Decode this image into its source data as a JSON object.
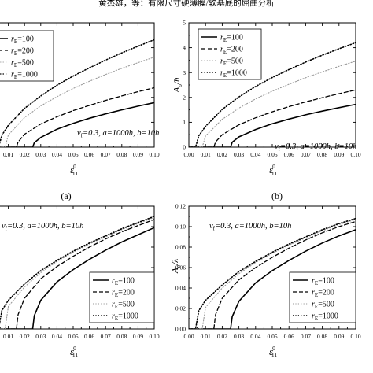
{
  "header": {
    "running_title": "黄杰雄，等：有限尺寸硬薄膜/软基底的屈曲分析"
  },
  "chart_data": [
    {
      "id": "a",
      "type": "line",
      "panel_label": "(a)",
      "xlabel": "ε11^0",
      "xlabel_main": "ε",
      "xlabel_sub": "11",
      "xlabel_sup": "0",
      "ylabel": "",
      "xlim": [
        0,
        0.1
      ],
      "ylim": [
        0,
        5
      ],
      "x_ticks": [
        "0.01",
        "0.02",
        "0.03",
        "0.04",
        "0.05",
        "0.06",
        "0.07",
        "0.08",
        "0.09",
        "0.10"
      ],
      "y_ticks": [],
      "annotation": "vf=0.3, a=1000h, b=10h",
      "series": [
        {
          "name": "rE=100",
          "style": "solid",
          "color": "#000000",
          "width": 1.6,
          "x": [
            0,
            0.025,
            0.026,
            0.03,
            0.04,
            0.05,
            0.06,
            0.07,
            0.08,
            0.09,
            0.1
          ],
          "y": [
            0,
            0,
            0.18,
            0.39,
            0.72,
            0.96,
            1.16,
            1.34,
            1.5,
            1.65,
            1.79
          ]
        },
        {
          "name": "rE=200",
          "style": "dashed",
          "color": "#000000",
          "width": 1.3,
          "x": [
            0,
            0.015,
            0.016,
            0.02,
            0.03,
            0.04,
            0.05,
            0.06,
            0.07,
            0.08,
            0.09,
            0.1
          ],
          "y": [
            0,
            0,
            0.21,
            0.52,
            0.93,
            1.22,
            1.47,
            1.68,
            1.88,
            2.06,
            2.23,
            2.39
          ]
        },
        {
          "name": "rE=500",
          "style": "dotted",
          "color": "#999999",
          "width": 1.1,
          "x": [
            0,
            0.008,
            0.01,
            0.02,
            0.03,
            0.04,
            0.05,
            0.06,
            0.07,
            0.08,
            0.09,
            0.1
          ],
          "y": [
            0,
            0,
            0.49,
            1.19,
            1.66,
            2.03,
            2.36,
            2.65,
            2.92,
            3.17,
            3.4,
            3.62
          ]
        },
        {
          "name": "rE=1000",
          "style": "dotted",
          "color": "#000000",
          "width": 1.6,
          "x": [
            0,
            0.004,
            0.006,
            0.01,
            0.02,
            0.03,
            0.04,
            0.05,
            0.06,
            0.07,
            0.08,
            0.09,
            0.1
          ],
          "y": [
            0,
            0,
            0.48,
            0.88,
            1.56,
            2.06,
            2.49,
            2.86,
            3.19,
            3.5,
            3.79,
            4.06,
            4.32
          ]
        }
      ]
    },
    {
      "id": "b",
      "type": "line",
      "panel_label": "(b)",
      "xlabel": "ε11^0",
      "xlabel_main": "ε",
      "xlabel_sub": "11",
      "xlabel_sup": "0",
      "ylabel": "Aσ/h",
      "ylabel_main": "A",
      "ylabel_sub": "σ",
      "ylabel_tail": "/h",
      "xlim": [
        0,
        0.1
      ],
      "ylim": [
        0,
        5
      ],
      "x_ticks": [
        "0.00",
        "0.01",
        "0.02",
        "0.03",
        "0.04",
        "0.05",
        "0.06",
        "0.07",
        "0.08",
        "0.09",
        "0.10"
      ],
      "y_ticks": [
        "0",
        "1",
        "2",
        "3",
        "4",
        "5"
      ],
      "annotation": "vf=0.3, a=1000h, b=10h",
      "series": [
        {
          "name": "rE=100",
          "style": "solid",
          "color": "#000000",
          "width": 1.6,
          "x": [
            0,
            0.025,
            0.026,
            0.03,
            0.04,
            0.05,
            0.06,
            0.07,
            0.08,
            0.09,
            0.1
          ],
          "y": [
            0,
            0,
            0.2,
            0.41,
            0.71,
            0.94,
            1.13,
            1.3,
            1.45,
            1.59,
            1.72
          ]
        },
        {
          "name": "rE=200",
          "style": "dashed",
          "color": "#000000",
          "width": 1.3,
          "x": [
            0,
            0.015,
            0.016,
            0.02,
            0.03,
            0.04,
            0.05,
            0.06,
            0.07,
            0.08,
            0.09,
            0.1
          ],
          "y": [
            0,
            0,
            0.21,
            0.5,
            0.9,
            1.18,
            1.42,
            1.63,
            1.82,
            1.99,
            2.15,
            2.3
          ]
        },
        {
          "name": "rE=500",
          "style": "dotted",
          "color": "#999999",
          "width": 1.1,
          "x": [
            0,
            0.008,
            0.01,
            0.02,
            0.03,
            0.04,
            0.05,
            0.06,
            0.07,
            0.08,
            0.09,
            0.1
          ],
          "y": [
            0,
            0,
            0.45,
            1.12,
            1.57,
            1.94,
            2.25,
            2.53,
            2.79,
            3.03,
            3.25,
            3.46
          ]
        },
        {
          "name": "rE=1000",
          "style": "dotted",
          "color": "#000000",
          "width": 1.6,
          "x": [
            0,
            0.004,
            0.006,
            0.01,
            0.02,
            0.03,
            0.04,
            0.05,
            0.06,
            0.07,
            0.08,
            0.09,
            0.1
          ],
          "y": [
            0,
            0,
            0.46,
            0.84,
            1.52,
            2.02,
            2.44,
            2.8,
            3.12,
            3.42,
            3.7,
            3.96,
            4.2
          ]
        }
      ]
    },
    {
      "id": "c",
      "type": "line",
      "panel_label": "",
      "xlabel": "ε11^0",
      "xlabel_main": "ε",
      "xlabel_sub": "11",
      "xlabel_sup": "0",
      "ylabel": "",
      "xlim": [
        0,
        0.1
      ],
      "ylim": [
        0,
        0.12
      ],
      "x_ticks": [
        "0.01",
        "0.02",
        "0.03",
        "0.04",
        "0.05",
        "0.06",
        "0.07",
        "0.08",
        "0.09",
        "0.10"
      ],
      "y_ticks": [],
      "annotation": "vf=0.3, a=1000h, b=10h",
      "series": [
        {
          "name": "rE=100",
          "style": "solid",
          "color": "#000000",
          "width": 1.6,
          "x": [
            0,
            0.025,
            0.026,
            0.03,
            0.04,
            0.05,
            0.06,
            0.07,
            0.08,
            0.09,
            0.1
          ],
          "y": [
            0,
            0,
            0.013,
            0.028,
            0.046,
            0.058,
            0.068,
            0.077,
            0.085,
            0.092,
            0.099
          ]
        },
        {
          "name": "rE=200",
          "style": "dashed",
          "color": "#000000",
          "width": 1.3,
          "x": [
            0,
            0.015,
            0.016,
            0.02,
            0.03,
            0.04,
            0.05,
            0.06,
            0.07,
            0.08,
            0.09,
            0.1
          ],
          "y": [
            0,
            0,
            0.014,
            0.03,
            0.049,
            0.061,
            0.071,
            0.08,
            0.088,
            0.095,
            0.101,
            0.107
          ]
        },
        {
          "name": "rE=500",
          "style": "dotted",
          "color": "#999999",
          "width": 1.1,
          "x": [
            0,
            0.008,
            0.01,
            0.02,
            0.03,
            0.04,
            0.05,
            0.06,
            0.07,
            0.08,
            0.09,
            0.1
          ],
          "y": [
            0,
            0,
            0.022,
            0.041,
            0.055,
            0.066,
            0.075,
            0.083,
            0.09,
            0.097,
            0.103,
            0.109
          ]
        },
        {
          "name": "rE=1000",
          "style": "dotted",
          "color": "#000000",
          "width": 1.6,
          "x": [
            0,
            0.004,
            0.006,
            0.01,
            0.02,
            0.03,
            0.04,
            0.05,
            0.06,
            0.07,
            0.08,
            0.09,
            0.1
          ],
          "y": [
            0,
            0,
            0.018,
            0.028,
            0.044,
            0.057,
            0.067,
            0.076,
            0.084,
            0.091,
            0.098,
            0.104,
            0.11
          ]
        }
      ]
    },
    {
      "id": "d",
      "type": "line",
      "panel_label": "",
      "xlabel": "ε11^0",
      "xlabel_main": "ε",
      "xlabel_sub": "11",
      "xlabel_sup": "0",
      "ylabel": "Aσ/λ",
      "ylabel_main": "A",
      "ylabel_sub": "σ",
      "ylabel_tail": "/λ",
      "xlim": [
        0,
        0.1
      ],
      "ylim": [
        0,
        0.12
      ],
      "x_ticks": [
        "0.00",
        "0.01",
        "0.02",
        "0.03",
        "0.04",
        "0.05",
        "0.06",
        "0.07",
        "0.08",
        "0.09",
        "0.10"
      ],
      "y_ticks": [
        "0.00",
        "0.02",
        "0.04",
        "0.06",
        "0.08",
        "0.10",
        "0.12"
      ],
      "annotation": "vf=0.3, a=1000h, b=10h",
      "series": [
        {
          "name": "rE=100",
          "style": "solid",
          "color": "#000000",
          "width": 1.6,
          "x": [
            0,
            0.025,
            0.026,
            0.03,
            0.04,
            0.05,
            0.06,
            0.07,
            0.08,
            0.09,
            0.1
          ],
          "y": [
            0,
            0,
            0.012,
            0.027,
            0.045,
            0.057,
            0.067,
            0.076,
            0.084,
            0.091,
            0.097
          ]
        },
        {
          "name": "rE=200",
          "style": "dashed",
          "color": "#000000",
          "width": 1.3,
          "x": [
            0,
            0.015,
            0.016,
            0.02,
            0.03,
            0.04,
            0.05,
            0.06,
            0.07,
            0.08,
            0.09,
            0.1
          ],
          "y": [
            0,
            0,
            0.014,
            0.03,
            0.048,
            0.06,
            0.07,
            0.079,
            0.087,
            0.094,
            0.1,
            0.105
          ]
        },
        {
          "name": "rE=500",
          "style": "dotted",
          "color": "#999999",
          "width": 1.1,
          "x": [
            0,
            0.008,
            0.01,
            0.02,
            0.03,
            0.04,
            0.05,
            0.06,
            0.07,
            0.08,
            0.09,
            0.1
          ],
          "y": [
            0,
            0,
            0.021,
            0.04,
            0.054,
            0.065,
            0.074,
            0.082,
            0.089,
            0.096,
            0.102,
            0.107
          ]
        },
        {
          "name": "rE=1000",
          "style": "dotted",
          "color": "#000000",
          "width": 1.6,
          "x": [
            0,
            0.004,
            0.006,
            0.01,
            0.02,
            0.03,
            0.04,
            0.05,
            0.06,
            0.07,
            0.08,
            0.09,
            0.1
          ],
          "y": [
            0,
            0,
            0.018,
            0.028,
            0.043,
            0.056,
            0.066,
            0.075,
            0.083,
            0.09,
            0.097,
            0.103,
            0.108
          ]
        }
      ]
    }
  ]
}
